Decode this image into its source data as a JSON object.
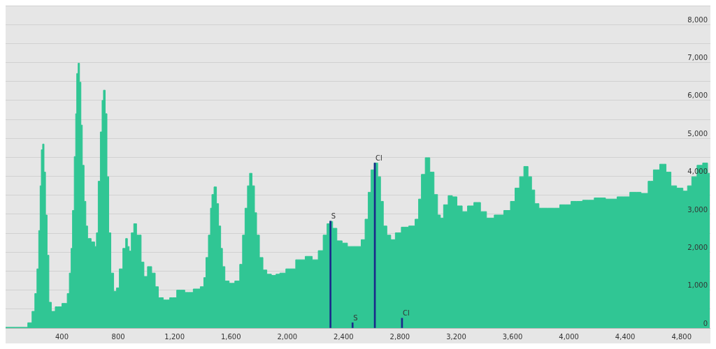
{
  "chart_data": {
    "type": "area",
    "xlim": [
      0,
      5005
    ],
    "ylim": [
      0,
      8500
    ],
    "xticks": [
      {
        "value": 400,
        "label": "400"
      },
      {
        "value": 800,
        "label": "800"
      },
      {
        "value": 1200,
        "label": "1,200"
      },
      {
        "value": 1600,
        "label": "1,600"
      },
      {
        "value": 2000,
        "label": "2,000"
      },
      {
        "value": 2400,
        "label": "2,400"
      },
      {
        "value": 2800,
        "label": "2,800"
      },
      {
        "value": 3200,
        "label": "3,200"
      },
      {
        "value": 3600,
        "label": "3,600"
      },
      {
        "value": 4000,
        "label": "4,000"
      },
      {
        "value": 4400,
        "label": "4,400"
      },
      {
        "value": 4800,
        "label": "4,800"
      }
    ],
    "yticks": [
      0,
      {
        "value": 500,
        "label": null
      },
      {
        "value": 1000,
        "label": "1,000"
      },
      {
        "value": 1500,
        "label": null
      },
      {
        "value": 2000,
        "label": "2,000"
      },
      {
        "value": 2500,
        "label": null
      },
      {
        "value": 3000,
        "label": "3,000"
      },
      {
        "value": 3500,
        "label": null
      },
      {
        "value": 4000,
        "label": "4,000"
      },
      {
        "value": 4500,
        "label": null
      },
      {
        "value": 5000,
        "label": "5,000"
      },
      {
        "value": 5500,
        "label": null
      },
      {
        "value": 6000,
        "label": "6,000"
      },
      {
        "value": 6500,
        "label": null
      },
      {
        "value": 7000,
        "label": "7,000"
      },
      {
        "value": 7500,
        "label": null
      },
      {
        "value": 8000,
        "label": "8,000"
      },
      {
        "value": 8500,
        "label": null
      }
    ],
    "grid": "y",
    "series": [
      {
        "color": "#30c694",
        "x": [
          0,
          140,
          175,
          200,
          215,
          230,
          240,
          250,
          257,
          269,
          277,
          290,
          300,
          315,
          335,
          370,
          430,
          445,
          460,
          470,
          480,
          495,
          500,
          510,
          520,
          530,
          540,
          550,
          565,
          575,
          590,
          625,
          640,
          650,
          665,
          680,
          690,
          700,
          715,
          725,
          740,
          755,
          780,
          795,
          820,
          845,
          860,
          870,
          885,
          900,
          920,
          940,
          950,
          975,
          990,
          1025,
          1050,
          1075,
          1095,
          1145,
          1185,
          1245,
          1300,
          1365,
          1400,
          1415,
          1430,
          1450,
          1460,
          1470,
          1490,
          1505,
          1520,
          1535,
          1545,
          1570,
          1605,
          1650,
          1675,
          1690,
          1710,
          1725,
          1740,
          1760,
          1775,
          1790,
          1815,
          1840,
          1870,
          1905,
          1935,
          1960,
          2020,
          2100,
          2155,
          2200,
          2240,
          2270,
          2295,
          2310,
          2335,
          2370,
          2410,
          2445,
          2510,
          2540,
          2565,
          2585,
          2605,
          2630,
          2655,
          2670,
          2695,
          2720,
          2750,
          2785,
          2835,
          2890,
          2925,
          2940,
          2965,
          2995,
          3030,
          3055,
          3080,
          3095,
          3125,
          3160,
          3185,
          3225,
          3260,
          3300,
          3350,
          3395,
          3435,
          3505,
          3570,
          3600,
          3635,
          3665,
          3695,
          3725,
          3745,
          3770,
          3805,
          3895,
          3975,
          4055,
          4140,
          4220,
          4300,
          4385,
          4480,
          4545,
          4580,
          4620,
          4670,
          4710,
          4740,
          4790,
          4830,
          4855,
          4890,
          4930,
          4970,
          5000
        ],
        "values": [
          20,
          20,
          140,
          440,
          910,
          1560,
          2570,
          3750,
          4700,
          4850,
          4110,
          2980,
          1920,
          680,
          440,
          560,
          650,
          910,
          1450,
          2100,
          3100,
          4520,
          5650,
          6710,
          6980,
          6480,
          5350,
          4290,
          3340,
          2690,
          2360,
          2270,
          2150,
          2510,
          3870,
          5170,
          6000,
          6270,
          5650,
          3990,
          2510,
          1450,
          970,
          1060,
          1560,
          2100,
          2360,
          2150,
          2030,
          2510,
          2750,
          2450,
          2450,
          1740,
          1360,
          1620,
          1450,
          1090,
          800,
          740,
          800,
          1000,
          940,
          1030,
          1090,
          1330,
          1860,
          2450,
          3160,
          3520,
          3720,
          3280,
          2690,
          2100,
          1620,
          1240,
          1180,
          1240,
          1680,
          2450,
          3160,
          3750,
          4080,
          3750,
          3040,
          2450,
          1860,
          1530,
          1420,
          1390,
          1420,
          1450,
          1560,
          1800,
          1890,
          1800,
          2040,
          2450,
          2750,
          2810,
          2630,
          2300,
          2240,
          2150,
          2150,
          2330,
          2870,
          3580,
          4170,
          4350,
          3990,
          3340,
          2690,
          2450,
          2330,
          2510,
          2660,
          2690,
          2870,
          3400,
          4050,
          4490,
          4110,
          3520,
          2980,
          2900,
          3250,
          3490,
          3460,
          3220,
          3070,
          3220,
          3310,
          3070,
          2900,
          2980,
          3100,
          3340,
          3690,
          3990,
          4260,
          3990,
          3640,
          3280,
          3160,
          3160,
          3250,
          3340,
          3370,
          3430,
          3400,
          3460,
          3580,
          3550,
          3870,
          4170,
          4320,
          4110,
          3750,
          3690,
          3610,
          3750,
          3990,
          4290,
          4350,
          4080
        ]
      },
      {
        "type": "bar",
        "color": "#1a2a8a",
        "x": [
          2307,
          2464,
          2622,
          2815
        ],
        "values": [
          2820,
          140,
          4350,
          260
        ],
        "value_labels": [
          "S",
          "S",
          "Cl",
          "Cl"
        ]
      }
    ]
  }
}
